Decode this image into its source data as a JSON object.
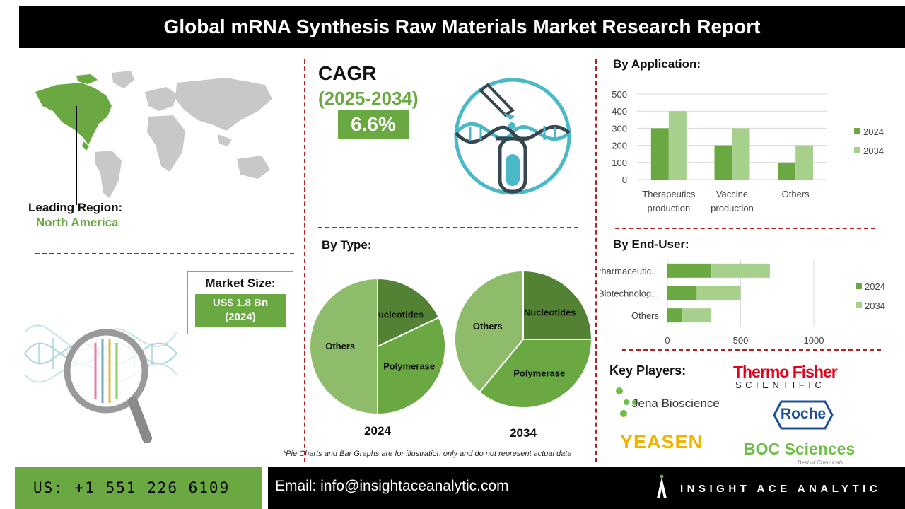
{
  "header": {
    "title": "Global mRNA Synthesis Raw Materials Market Research Report"
  },
  "region": {
    "label": "Leading Region:",
    "value": "North America"
  },
  "cagr": {
    "title": "CAGR",
    "years": "(2025-2034)",
    "value": "6.6%"
  },
  "market_size": {
    "label": "Market Size:",
    "value_line1": "US$ 1.8 Bn",
    "value_line2": "(2024)"
  },
  "by_application": {
    "heading": "By Application:"
  },
  "by_type": {
    "heading": "By Type:"
  },
  "by_end_user": {
    "heading": "By End-User:"
  },
  "key_players": {
    "heading": "Key Players:",
    "names": [
      "Thermo Fisher",
      "SCIENTIFIC",
      "Jena Bioscience",
      "Roche",
      "YEASEN",
      "BOC Sciences",
      "Best of Chemicals"
    ]
  },
  "note": "*Pie Charts and Bar Graphs are for illustration only and do not represent actual data",
  "footer": {
    "phone": "US: +1 551 226 6109",
    "email": "Email: info@insightaceanalytic.com",
    "brand": "INSIGHT ACE ANALYTIC"
  },
  "colors": {
    "dark_green": "#5e9e3b",
    "mid_green": "#6aa842",
    "light_green": "#a8d08d",
    "accent": "#b22222"
  },
  "chart_data": [
    {
      "type": "bar",
      "categories": [
        "Therapeutics production",
        "Vaccine production",
        "Others"
      ],
      "category_lines": [
        [
          "Therapeutics",
          "production"
        ],
        [
          "Vaccine",
          "production"
        ],
        [
          "Others"
        ]
      ],
      "series": [
        {
          "name": "2024",
          "values": [
            300,
            200,
            100
          ]
        },
        {
          "name": "2034",
          "values": [
            400,
            300,
            200
          ]
        }
      ],
      "ylim": [
        0,
        500
      ],
      "yticks": [
        0,
        100,
        200,
        300,
        400,
        500
      ],
      "grid": true,
      "legend": "right"
    },
    {
      "type": "pie",
      "title": "2024",
      "labels": [
        "Nucleotides",
        "Polymerase",
        "Others"
      ],
      "values": [
        18,
        32,
        50
      ]
    },
    {
      "type": "pie",
      "title": "2034",
      "labels": [
        "Nucleotides",
        "Polymerase",
        "Others"
      ],
      "values": [
        25,
        36,
        39
      ]
    },
    {
      "type": "bar",
      "orientation": "horizontal",
      "stacked": true,
      "categories": [
        "Pharmaceutic...",
        "Biotechnolog...",
        "Others"
      ],
      "series": [
        {
          "name": "2024",
          "values": [
            300,
            200,
            100
          ]
        },
        {
          "name": "2034",
          "values": [
            400,
            300,
            200
          ]
        }
      ],
      "xlim": [
        0,
        1000
      ],
      "xticks": [
        0,
        500,
        1000
      ],
      "grid": true,
      "legend": "right"
    }
  ]
}
